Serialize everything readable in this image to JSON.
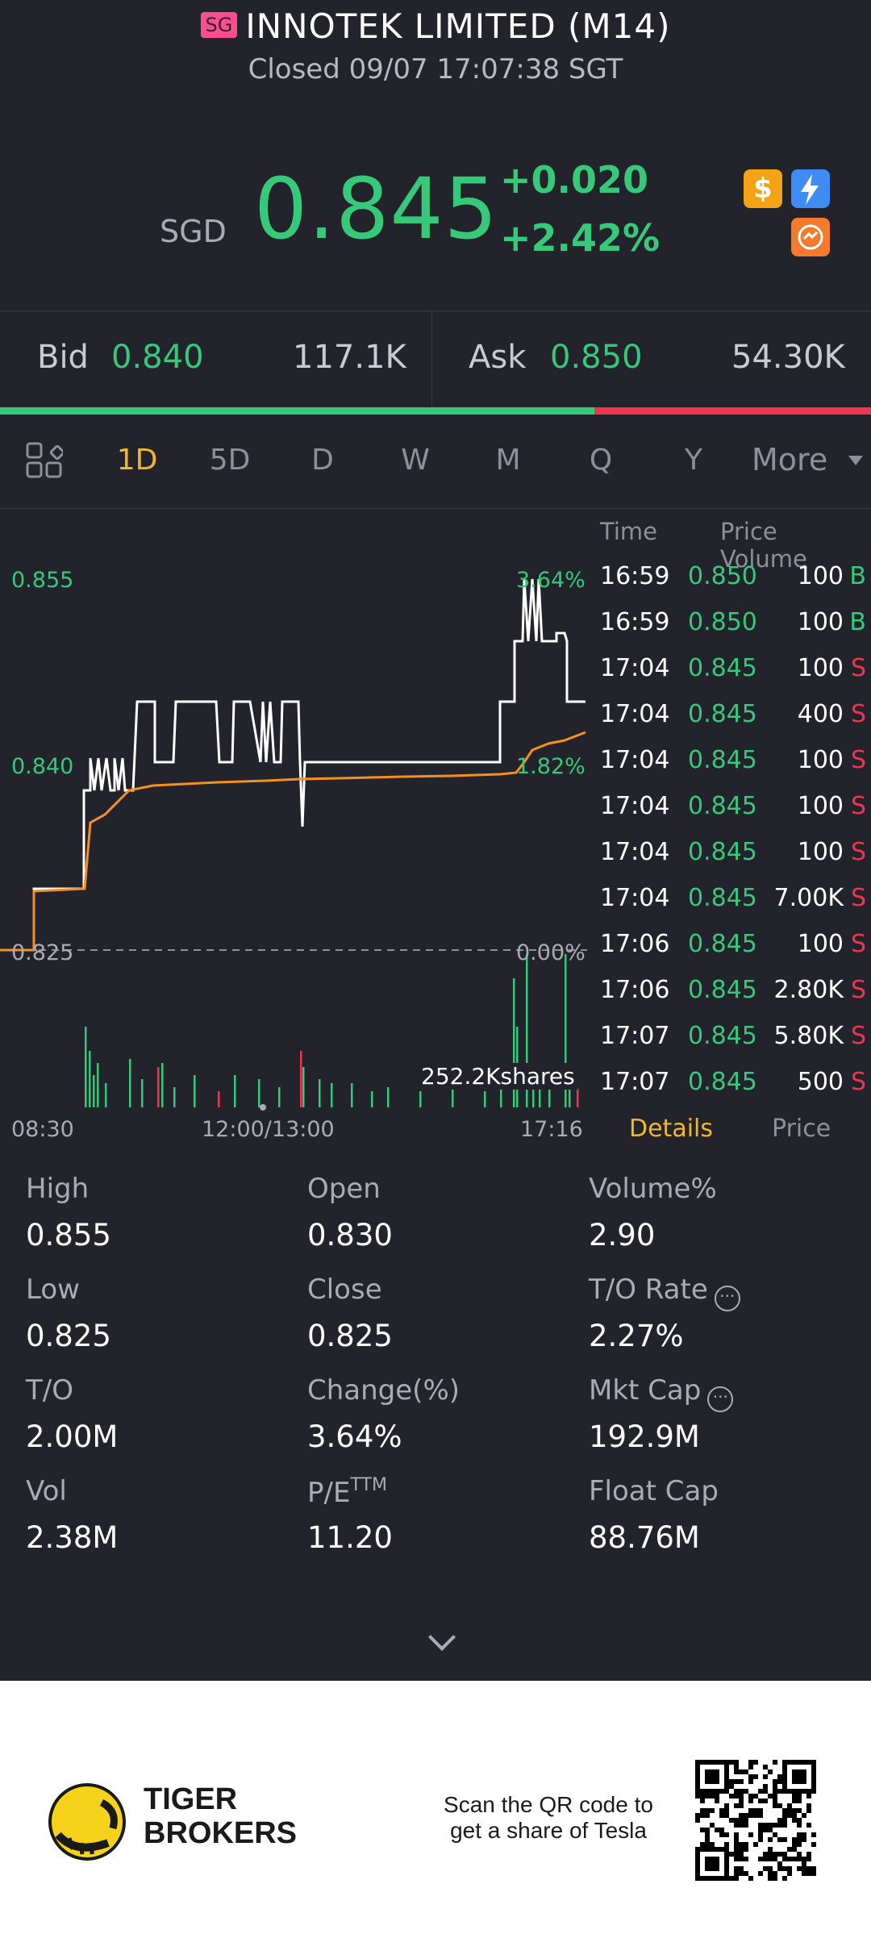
{
  "header": {
    "market_badge": "SG",
    "title": "INNOTEK LIMITED (M14)",
    "status": "Closed 09/07 17:07:38 SGT",
    "currency": "SGD",
    "price": "0.845",
    "change": "+0.020",
    "change_pct": "+2.42%",
    "icons": [
      "dollar-icon",
      "flash-icon",
      "swap-icon"
    ]
  },
  "quote": {
    "bid_label": "Bid",
    "bid_price": "0.840",
    "bid_size": "117.1K",
    "ask_label": "Ask",
    "ask_price": "0.850",
    "ask_size": "54.30K",
    "bid_ratio": 0.682
  },
  "tabs": {
    "items": [
      "1D",
      "5D",
      "D",
      "W",
      "M",
      "Q",
      "Y"
    ],
    "active": "1D",
    "more": "More"
  },
  "chart": {
    "y_high": "0.855",
    "y_mid": "0.840",
    "y_low": "0.825",
    "pct_high": "3.64%",
    "pct_mid": "1.82%",
    "pct_low": "0.00%",
    "volume_label": "252.2Kshares",
    "time_start": "08:30",
    "time_mid": "12:00/13:00",
    "time_end": "17:16"
  },
  "ticks": {
    "header_time": "Time",
    "header_price_volume": "Price Volume",
    "rows": [
      {
        "time": "16:59",
        "price": "0.850",
        "vol": "100",
        "side": "B"
      },
      {
        "time": "16:59",
        "price": "0.850",
        "vol": "100",
        "side": "B"
      },
      {
        "time": "17:04",
        "price": "0.845",
        "vol": "100",
        "side": "S"
      },
      {
        "time": "17:04",
        "price": "0.845",
        "vol": "400",
        "side": "S"
      },
      {
        "time": "17:04",
        "price": "0.845",
        "vol": "100",
        "side": "S"
      },
      {
        "time": "17:04",
        "price": "0.845",
        "vol": "100",
        "side": "S"
      },
      {
        "time": "17:04",
        "price": "0.845",
        "vol": "100",
        "side": "S"
      },
      {
        "time": "17:04",
        "price": "0.845",
        "vol": "7.00K",
        "side": "S"
      },
      {
        "time": "17:06",
        "price": "0.845",
        "vol": "100",
        "side": "S"
      },
      {
        "time": "17:06",
        "price": "0.845",
        "vol": "2.80K",
        "side": "S"
      },
      {
        "time": "17:07",
        "price": "0.845",
        "vol": "5.80K",
        "side": "S"
      },
      {
        "time": "17:07",
        "price": "0.845",
        "vol": "500",
        "side": "S"
      }
    ],
    "tab_details": "Details",
    "tab_price": "Price"
  },
  "stats": {
    "high_label": "High",
    "high": "0.855",
    "open_label": "Open",
    "open": "0.830",
    "volpct_label": "Volume%",
    "volpct": "2.90",
    "low_label": "Low",
    "low": "0.825",
    "close_label": "Close",
    "close": "0.825",
    "torate_label": "T/O Rate",
    "torate": "2.27%",
    "to_label": "T/O",
    "to": "2.00M",
    "changepct_label": "Change(%)",
    "changepct": "3.64%",
    "mktcap_label": "Mkt Cap",
    "mktcap": "192.9M",
    "vol_label": "Vol",
    "vol": "2.38M",
    "pe_label": "P/E",
    "pe_sup": "TTM",
    "pe": "11.20",
    "floatcap_label": "Float Cap",
    "floatcap": "88.76M"
  },
  "footer": {
    "brand_line1": "TIGER",
    "brand_line2": "BROKERS",
    "qr_line1": "Scan the QR code to",
    "qr_line2": "get a share of Tesla"
  },
  "colors": {
    "up": "#37c97a",
    "down": "#f0344e",
    "accent": "#f1b72c",
    "background": "#22232b"
  }
}
